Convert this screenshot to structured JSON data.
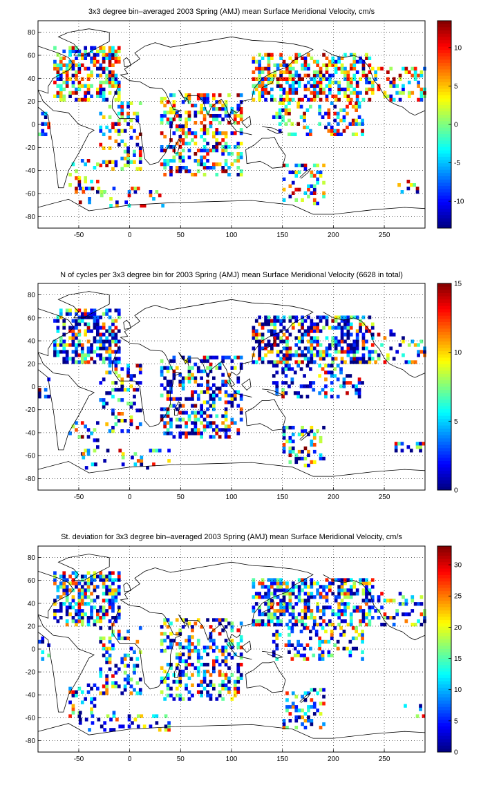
{
  "chart_data": [
    {
      "type": "heatmap",
      "title": "3x3 degree bin–averaged 2003 Spring (AMJ) mean Surface Meridional Velocity, cm/s",
      "xlabel": "",
      "ylabel": "",
      "xlim": [
        -90,
        290
      ],
      "ylim": [
        -90,
        90
      ],
      "xticks": [
        "-50",
        "0",
        "50",
        "100",
        "150",
        "200",
        "250"
      ],
      "yticks": [
        "80",
        "60",
        "40",
        "20",
        "0",
        "-20",
        "-40",
        "-60",
        "-80"
      ],
      "grid": true,
      "colorbar": {
        "range": [
          -13.5,
          13.5
        ],
        "ticks": [
          "10",
          "5",
          "0",
          "-5",
          "-10"
        ],
        "colormap": "jet"
      }
    },
    {
      "type": "heatmap",
      "title": "N of cycles per 3x3 degree bin for 2003 Spring (AMJ) mean Surface Meridional Velocity (6628 in total)",
      "xlabel": "",
      "ylabel": "",
      "xlim": [
        -90,
        290
      ],
      "ylim": [
        -90,
        90
      ],
      "xticks": [
        "-50",
        "0",
        "50",
        "100",
        "150",
        "200",
        "250"
      ],
      "yticks": [
        "80",
        "60",
        "40",
        "20",
        "0",
        "-20",
        "-40",
        "-60",
        "-80"
      ],
      "grid": true,
      "colorbar": {
        "range": [
          0,
          15
        ],
        "ticks": [
          "15",
          "10",
          "5",
          "0"
        ],
        "colormap": "jet"
      }
    },
    {
      "type": "heatmap",
      "title": "St. deviation for 3x3 degree bin–averaged 2003 Spring (AMJ) mean Surface Meridional Velocity, cm/s",
      "xlabel": "",
      "ylabel": "",
      "xlim": [
        -90,
        290
      ],
      "ylim": [
        -90,
        90
      ],
      "xticks": [
        "-50",
        "0",
        "50",
        "100",
        "150",
        "200",
        "250"
      ],
      "yticks": [
        "80",
        "60",
        "40",
        "20",
        "0",
        "-20",
        "-40",
        "-60",
        "-80"
      ],
      "grid": true,
      "colorbar": {
        "range": [
          0,
          33
        ],
        "ticks": [
          "30",
          "25",
          "20",
          "15",
          "10",
          "5",
          "0"
        ],
        "colormap": "jet"
      }
    }
  ]
}
